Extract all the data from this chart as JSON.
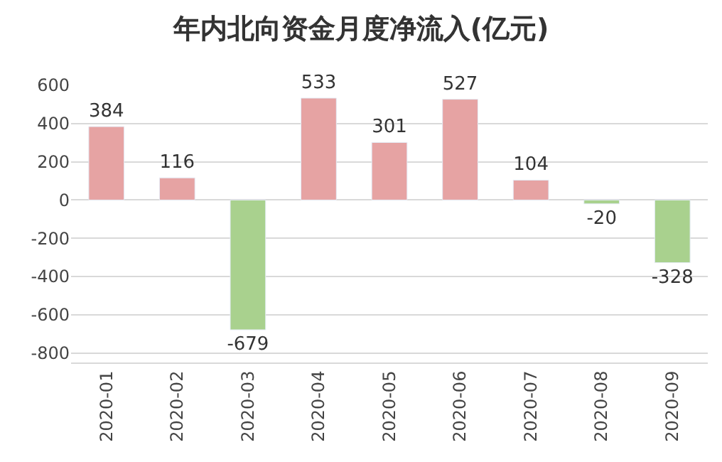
{
  "chart_data": {
    "type": "bar",
    "title": "年内北向资金月度净流入(亿元)",
    "categories": [
      "2020-01",
      "2020-02",
      "2020-03",
      "2020-04",
      "2020-05",
      "2020-06",
      "2020-07",
      "2020-08",
      "2020-09"
    ],
    "values": [
      384,
      116,
      -679,
      533,
      301,
      527,
      104,
      -20,
      -328
    ],
    "colors": [
      "#e6a3a3",
      "#e6a3a3",
      "#a9d18e",
      "#e6a3a3",
      "#e6a3a3",
      "#e6a3a3",
      "#e6a3a3",
      "#a9d18e",
      "#a9d18e"
    ],
    "ylim": [
      -850,
      600
    ],
    "yticks": [
      -800,
      -600,
      -400,
      -200,
      0,
      200,
      400,
      600
    ],
    "grid": "y",
    "data_labels": true
  }
}
